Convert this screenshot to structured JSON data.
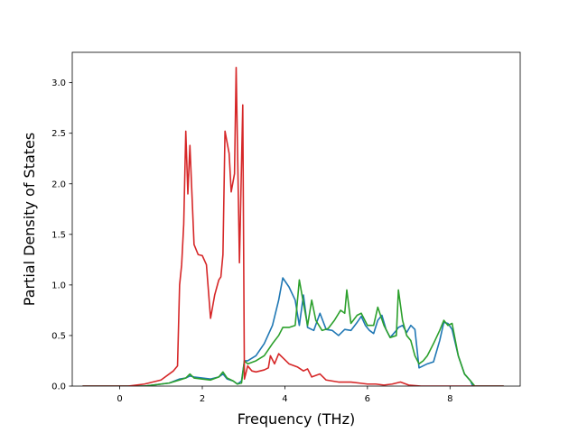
{
  "chart_data": {
    "type": "line",
    "title": "",
    "xlabel": "Frequency (THz)",
    "ylabel": "Partial Density of States",
    "xlim": [
      -1.15,
      9.7
    ],
    "ylim": [
      0,
      3.3
    ],
    "grid": false,
    "x_ticks": [
      0,
      2,
      4,
      6,
      8
    ],
    "x_tick_labels": [
      "0",
      "2",
      "4",
      "6",
      "8"
    ],
    "y_ticks": [
      0,
      0.5,
      1,
      1.5,
      2,
      2.5,
      3
    ],
    "y_tick_labels": [
      "0.0",
      "0.5",
      "1.0",
      "1.5",
      "2.0",
      "2.5",
      "3.0"
    ],
    "series": [
      {
        "color": "#1f77b4",
        "points": [
          [
            -0.9,
            0
          ],
          [
            0.6,
            0
          ],
          [
            1.2,
            0.03
          ],
          [
            1.45,
            0.07
          ],
          [
            1.6,
            0.08
          ],
          [
            1.7,
            0.1
          ],
          [
            1.8,
            0.09
          ],
          [
            2.0,
            0.08
          ],
          [
            2.2,
            0.07
          ],
          [
            2.4,
            0.09
          ],
          [
            2.5,
            0.12
          ],
          [
            2.6,
            0.07
          ],
          [
            2.75,
            0.05
          ],
          [
            2.85,
            0.02
          ],
          [
            2.95,
            0.05
          ],
          [
            3.02,
            0.25
          ],
          [
            3.1,
            0.25
          ],
          [
            3.3,
            0.3
          ],
          [
            3.5,
            0.42
          ],
          [
            3.7,
            0.6
          ],
          [
            3.85,
            0.85
          ],
          [
            3.95,
            1.07
          ],
          [
            4.1,
            0.98
          ],
          [
            4.25,
            0.85
          ],
          [
            4.35,
            0.6
          ],
          [
            4.45,
            0.9
          ],
          [
            4.55,
            0.58
          ],
          [
            4.7,
            0.55
          ],
          [
            4.85,
            0.72
          ],
          [
            5.0,
            0.56
          ],
          [
            5.15,
            0.55
          ],
          [
            5.3,
            0.5
          ],
          [
            5.45,
            0.56
          ],
          [
            5.6,
            0.55
          ],
          [
            5.75,
            0.63
          ],
          [
            5.85,
            0.69
          ],
          [
            5.95,
            0.6
          ],
          [
            6.05,
            0.55
          ],
          [
            6.15,
            0.52
          ],
          [
            6.25,
            0.65
          ],
          [
            6.35,
            0.7
          ],
          [
            6.45,
            0.56
          ],
          [
            6.55,
            0.48
          ],
          [
            6.7,
            0.55
          ],
          [
            6.75,
            0.58
          ],
          [
            6.85,
            0.6
          ],
          [
            6.95,
            0.53
          ],
          [
            7.05,
            0.6
          ],
          [
            7.15,
            0.56
          ],
          [
            7.25,
            0.18
          ],
          [
            7.35,
            0.2
          ],
          [
            7.45,
            0.22
          ],
          [
            7.6,
            0.24
          ],
          [
            7.75,
            0.45
          ],
          [
            7.85,
            0.63
          ],
          [
            7.95,
            0.62
          ],
          [
            8.05,
            0.56
          ],
          [
            8.2,
            0.3
          ],
          [
            8.35,
            0.12
          ],
          [
            8.5,
            0.05
          ],
          [
            8.55,
            0
          ],
          [
            9.3,
            0
          ]
        ]
      },
      {
        "color": "#2ca02c",
        "points": [
          [
            -0.9,
            0
          ],
          [
            0.6,
            0
          ],
          [
            1.2,
            0.03
          ],
          [
            1.45,
            0.06
          ],
          [
            1.6,
            0.08
          ],
          [
            1.7,
            0.12
          ],
          [
            1.8,
            0.08
          ],
          [
            2.0,
            0.07
          ],
          [
            2.2,
            0.06
          ],
          [
            2.4,
            0.09
          ],
          [
            2.5,
            0.14
          ],
          [
            2.6,
            0.08
          ],
          [
            2.75,
            0.05
          ],
          [
            2.85,
            0.02
          ],
          [
            2.95,
            0.03
          ],
          [
            3.02,
            0.25
          ],
          [
            3.1,
            0.22
          ],
          [
            3.3,
            0.25
          ],
          [
            3.5,
            0.3
          ],
          [
            3.7,
            0.42
          ],
          [
            3.85,
            0.5
          ],
          [
            3.95,
            0.58
          ],
          [
            4.1,
            0.58
          ],
          [
            4.25,
            0.6
          ],
          [
            4.35,
            1.05
          ],
          [
            4.45,
            0.82
          ],
          [
            4.55,
            0.6
          ],
          [
            4.65,
            0.85
          ],
          [
            4.75,
            0.65
          ],
          [
            4.9,
            0.55
          ],
          [
            5.05,
            0.57
          ],
          [
            5.2,
            0.65
          ],
          [
            5.35,
            0.75
          ],
          [
            5.45,
            0.72
          ],
          [
            5.5,
            0.95
          ],
          [
            5.6,
            0.62
          ],
          [
            5.75,
            0.7
          ],
          [
            5.85,
            0.72
          ],
          [
            6.0,
            0.6
          ],
          [
            6.15,
            0.6
          ],
          [
            6.25,
            0.78
          ],
          [
            6.4,
            0.6
          ],
          [
            6.55,
            0.48
          ],
          [
            6.7,
            0.5
          ],
          [
            6.75,
            0.95
          ],
          [
            6.85,
            0.65
          ],
          [
            6.95,
            0.5
          ],
          [
            7.05,
            0.45
          ],
          [
            7.15,
            0.3
          ],
          [
            7.25,
            0.22
          ],
          [
            7.35,
            0.25
          ],
          [
            7.45,
            0.3
          ],
          [
            7.6,
            0.42
          ],
          [
            7.75,
            0.55
          ],
          [
            7.85,
            0.65
          ],
          [
            7.95,
            0.6
          ],
          [
            8.05,
            0.62
          ],
          [
            8.2,
            0.3
          ],
          [
            8.35,
            0.12
          ],
          [
            8.5,
            0.05
          ],
          [
            8.6,
            0
          ],
          [
            9.3,
            0
          ]
        ]
      },
      {
        "color": "#d62728",
        "points": [
          [
            -0.9,
            0
          ],
          [
            0.2,
            0
          ],
          [
            0.6,
            0.02
          ],
          [
            1.0,
            0.06
          ],
          [
            1.3,
            0.15
          ],
          [
            1.4,
            0.2
          ],
          [
            1.45,
            1.0
          ],
          [
            1.5,
            1.2
          ],
          [
            1.55,
            1.6
          ],
          [
            1.6,
            2.52
          ],
          [
            1.65,
            1.9
          ],
          [
            1.7,
            2.38
          ],
          [
            1.8,
            1.4
          ],
          [
            1.9,
            1.3
          ],
          [
            2.0,
            1.29
          ],
          [
            2.1,
            1.2
          ],
          [
            2.2,
            0.67
          ],
          [
            2.3,
            0.9
          ],
          [
            2.4,
            1.05
          ],
          [
            2.45,
            1.08
          ],
          [
            2.5,
            1.3
          ],
          [
            2.55,
            2.52
          ],
          [
            2.65,
            2.3
          ],
          [
            2.7,
            1.92
          ],
          [
            2.78,
            2.1
          ],
          [
            2.82,
            3.15
          ],
          [
            2.9,
            1.22
          ],
          [
            2.98,
            2.78
          ],
          [
            3.02,
            0.07
          ],
          [
            3.1,
            0.2
          ],
          [
            3.2,
            0.15
          ],
          [
            3.3,
            0.14
          ],
          [
            3.5,
            0.16
          ],
          [
            3.6,
            0.18
          ],
          [
            3.65,
            0.3
          ],
          [
            3.75,
            0.22
          ],
          [
            3.85,
            0.32
          ],
          [
            3.95,
            0.28
          ],
          [
            4.1,
            0.22
          ],
          [
            4.3,
            0.19
          ],
          [
            4.45,
            0.15
          ],
          [
            4.55,
            0.17
          ],
          [
            4.65,
            0.09
          ],
          [
            4.85,
            0.12
          ],
          [
            5.0,
            0.06
          ],
          [
            5.3,
            0.04
          ],
          [
            5.6,
            0.04
          ],
          [
            5.8,
            0.03
          ],
          [
            6.0,
            0.02
          ],
          [
            6.2,
            0.02
          ],
          [
            6.4,
            0.01
          ],
          [
            6.6,
            0.02
          ],
          [
            6.8,
            0.04
          ],
          [
            7.0,
            0.01
          ],
          [
            7.3,
            0
          ],
          [
            8.2,
            0
          ],
          [
            9.3,
            0
          ]
        ]
      }
    ]
  }
}
